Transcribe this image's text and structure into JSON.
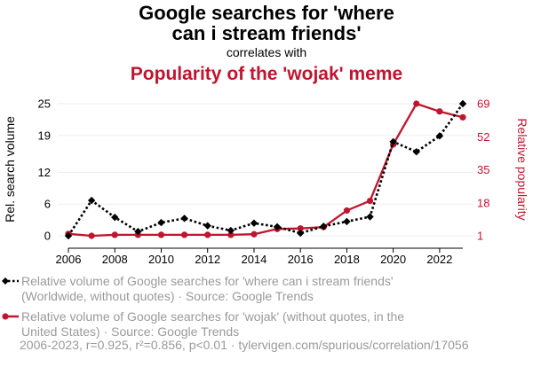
{
  "chart_data": {
    "type": "line",
    "title": {
      "line1": "Google searches for 'where",
      "line2": "can i stream friends'",
      "connector": "correlates with",
      "second": "Popularity of the 'wojak' meme"
    },
    "x": [
      2006,
      2007,
      2008,
      2009,
      2010,
      2011,
      2012,
      2013,
      2014,
      2015,
      2016,
      2017,
      2018,
      2019,
      2020,
      2021,
      2022,
      2023
    ],
    "xticks": [
      2006,
      2008,
      2010,
      2012,
      2014,
      2016,
      2018,
      2020,
      2022
    ],
    "xlim": [
      2006,
      2023
    ],
    "left_axis": {
      "label": "Rel. search volume",
      "ticks": [
        0,
        6,
        12,
        19,
        25
      ],
      "ylim": [
        0,
        25
      ],
      "color": "#000000"
    },
    "right_axis": {
      "label": "Relative popularity",
      "ticks": [
        1,
        18,
        35,
        52,
        69
      ],
      "ylim": [
        1,
        69
      ],
      "color": "#c0152f"
    },
    "series": [
      {
        "name": "Relative volume of Google searches for 'where can i stream friends' (Worldwide, without quotes) · Source: Google Trends",
        "legend_lines": [
          "Relative volume of Google searches for 'where can i stream friends'",
          "(Worldwide, without quotes) · Source: Google Trends"
        ],
        "axis": "left",
        "color": "#000000",
        "style": "dotted",
        "marker": "diamond",
        "values": [
          0,
          6.7,
          3.5,
          0.8,
          2.5,
          3.3,
          1.9,
          1.0,
          2.4,
          1.7,
          0.5,
          1.8,
          2.7,
          3.6,
          17.8,
          15.9,
          18.9,
          25.0
        ]
      },
      {
        "name": "Relative volume of Google searches for 'wojak' (without quotes, in the United States) · Source: Google Trends",
        "legend_lines": [
          "Relative volume of Google searches for 'wojak' (without quotes, in the",
          "United States) · Source: Google Trends"
        ],
        "axis": "right",
        "color": "#c0152f",
        "style": "solid",
        "marker": "circle",
        "values": [
          2,
          1,
          1.5,
          1.5,
          1.5,
          1.5,
          1.5,
          1.5,
          1.8,
          4.5,
          4.8,
          5.5,
          14,
          19,
          48,
          69,
          65,
          62
        ]
      }
    ],
    "grid": true,
    "footer": "2006-2023, r=0.925, r²=0.856, p<0.01 · tylervigen.com/spurious/correlation/17056"
  }
}
